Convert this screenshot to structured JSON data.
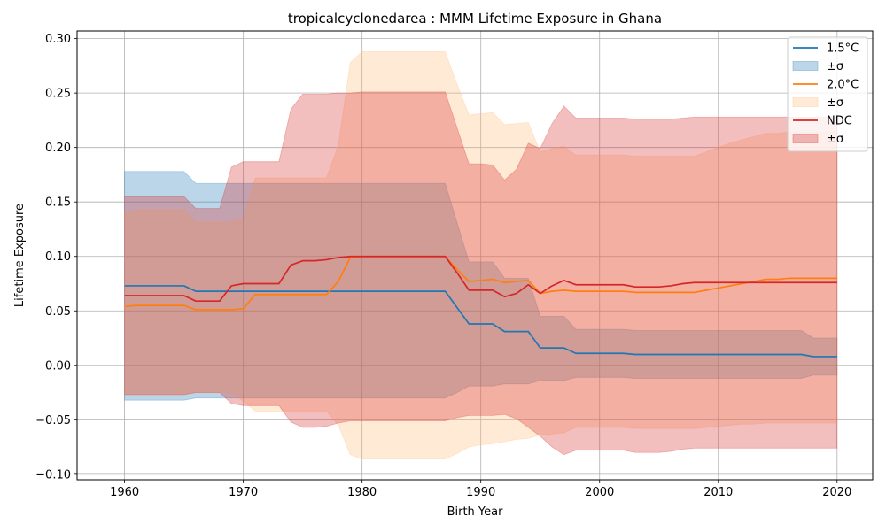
{
  "chart_data": {
    "type": "line",
    "title": "tropicalcyclonedarea : MMM Lifetime Exposure in Ghana",
    "xlabel": "Birth Year",
    "ylabel": "Lifetime Exposure",
    "xlim": [
      1956,
      2023
    ],
    "ylim": [
      -0.105,
      0.307
    ],
    "xticks": [
      1960,
      1970,
      1980,
      1990,
      2000,
      2010,
      2020
    ],
    "xtick_labels": [
      "1960",
      "1970",
      "1980",
      "1990",
      "2000",
      "2010",
      "2020"
    ],
    "yticks": [
      -0.1,
      -0.05,
      0.0,
      0.05,
      0.1,
      0.15,
      0.2,
      0.25,
      0.3
    ],
    "ytick_labels": [
      "−0.10",
      "−0.05",
      "0.00",
      "0.05",
      "0.10",
      "0.15",
      "0.20",
      "0.25",
      "0.30"
    ],
    "grid": true,
    "legend_position": "top-right",
    "x": [
      1960,
      1961,
      1962,
      1963,
      1964,
      1965,
      1966,
      1967,
      1968,
      1969,
      1970,
      1971,
      1972,
      1973,
      1974,
      1975,
      1976,
      1977,
      1978,
      1979,
      1980,
      1981,
      1982,
      1983,
      1984,
      1985,
      1986,
      1987,
      1988,
      1989,
      1990,
      1991,
      1992,
      1993,
      1994,
      1995,
      1996,
      1997,
      1998,
      1999,
      2000,
      2001,
      2002,
      2003,
      2004,
      2005,
      2006,
      2007,
      2008,
      2009,
      2010,
      2011,
      2012,
      2013,
      2014,
      2015,
      2016,
      2017,
      2018,
      2019,
      2020
    ],
    "series": [
      {
        "name": "1.5°C",
        "band_label": "±σ",
        "color": "#1f77b4",
        "fill": "#1f77b4",
        "mean": [
          0.073,
          0.073,
          0.073,
          0.073,
          0.073,
          0.073,
          0.068,
          0.068,
          0.068,
          0.068,
          0.068,
          0.068,
          0.068,
          0.068,
          0.068,
          0.068,
          0.068,
          0.068,
          0.068,
          0.068,
          0.068,
          0.068,
          0.068,
          0.068,
          0.068,
          0.068,
          0.068,
          0.068,
          0.053,
          0.038,
          0.038,
          0.038,
          0.031,
          0.031,
          0.031,
          0.016,
          0.016,
          0.016,
          0.011,
          0.011,
          0.011,
          0.011,
          0.011,
          0.01,
          0.01,
          0.01,
          0.01,
          0.01,
          0.01,
          0.01,
          0.01,
          0.01,
          0.01,
          0.01,
          0.01,
          0.01,
          0.01,
          0.01,
          0.008,
          0.008,
          0.008
        ],
        "upper": [
          0.178,
          0.178,
          0.178,
          0.178,
          0.178,
          0.178,
          0.167,
          0.167,
          0.167,
          0.167,
          0.167,
          0.167,
          0.167,
          0.167,
          0.167,
          0.167,
          0.167,
          0.167,
          0.167,
          0.167,
          0.167,
          0.167,
          0.167,
          0.167,
          0.167,
          0.167,
          0.167,
          0.167,
          0.131,
          0.095,
          0.095,
          0.095,
          0.08,
          0.08,
          0.08,
          0.045,
          0.045,
          0.045,
          0.033,
          0.033,
          0.033,
          0.033,
          0.033,
          0.032,
          0.032,
          0.032,
          0.032,
          0.032,
          0.032,
          0.032,
          0.032,
          0.032,
          0.032,
          0.032,
          0.032,
          0.032,
          0.032,
          0.032,
          0.025,
          0.025,
          0.025
        ],
        "lower": [
          -0.032,
          -0.032,
          -0.032,
          -0.032,
          -0.032,
          -0.032,
          -0.03,
          -0.03,
          -0.03,
          -0.03,
          -0.03,
          -0.03,
          -0.03,
          -0.03,
          -0.03,
          -0.03,
          -0.03,
          -0.03,
          -0.03,
          -0.03,
          -0.03,
          -0.03,
          -0.03,
          -0.03,
          -0.03,
          -0.03,
          -0.03,
          -0.03,
          -0.025,
          -0.019,
          -0.019,
          -0.019,
          -0.017,
          -0.017,
          -0.017,
          -0.014,
          -0.014,
          -0.014,
          -0.011,
          -0.011,
          -0.011,
          -0.011,
          -0.011,
          -0.012,
          -0.012,
          -0.012,
          -0.012,
          -0.012,
          -0.012,
          -0.012,
          -0.012,
          -0.012,
          -0.012,
          -0.012,
          -0.012,
          -0.012,
          -0.012,
          -0.012,
          -0.009,
          -0.009,
          -0.009
        ]
      },
      {
        "name": "2.0°C",
        "band_label": "±σ",
        "color": "#ff7f0e",
        "fill": "#ffbb78",
        "mean": [
          0.054,
          0.055,
          0.055,
          0.055,
          0.055,
          0.055,
          0.051,
          0.051,
          0.051,
          0.051,
          0.052,
          0.065,
          0.065,
          0.065,
          0.065,
          0.065,
          0.065,
          0.065,
          0.077,
          0.099,
          0.1,
          0.1,
          0.1,
          0.1,
          0.1,
          0.1,
          0.1,
          0.1,
          0.088,
          0.077,
          0.078,
          0.079,
          0.076,
          0.077,
          0.078,
          0.066,
          0.068,
          0.069,
          0.068,
          0.068,
          0.068,
          0.068,
          0.068,
          0.067,
          0.067,
          0.067,
          0.067,
          0.067,
          0.067,
          0.069,
          0.071,
          0.073,
          0.075,
          0.077,
          0.079,
          0.079,
          0.08,
          0.08,
          0.08,
          0.08,
          0.08
        ],
        "upper": [
          0.14,
          0.143,
          0.143,
          0.143,
          0.143,
          0.143,
          0.132,
          0.132,
          0.132,
          0.132,
          0.135,
          0.172,
          0.172,
          0.172,
          0.172,
          0.172,
          0.172,
          0.172,
          0.202,
          0.278,
          0.288,
          0.288,
          0.288,
          0.288,
          0.288,
          0.288,
          0.288,
          0.288,
          0.258,
          0.23,
          0.231,
          0.232,
          0.221,
          0.222,
          0.223,
          0.196,
          0.199,
          0.201,
          0.193,
          0.193,
          0.193,
          0.193,
          0.193,
          0.192,
          0.192,
          0.192,
          0.192,
          0.192,
          0.192,
          0.196,
          0.2,
          0.204,
          0.207,
          0.21,
          0.213,
          0.213,
          0.214,
          0.214,
          0.214,
          0.214,
          0.214
        ],
        "lower": [
          -0.027,
          -0.027,
          -0.027,
          -0.027,
          -0.027,
          -0.027,
          -0.025,
          -0.025,
          -0.025,
          -0.025,
          -0.033,
          -0.042,
          -0.042,
          -0.042,
          -0.042,
          -0.042,
          -0.042,
          -0.042,
          -0.055,
          -0.082,
          -0.086,
          -0.086,
          -0.086,
          -0.086,
          -0.086,
          -0.086,
          -0.086,
          -0.086,
          -0.081,
          -0.075,
          -0.073,
          -0.072,
          -0.07,
          -0.068,
          -0.067,
          -0.064,
          -0.063,
          -0.062,
          -0.057,
          -0.057,
          -0.057,
          -0.057,
          -0.057,
          -0.058,
          -0.058,
          -0.058,
          -0.058,
          -0.058,
          -0.058,
          -0.057,
          -0.056,
          -0.055,
          -0.054,
          -0.054,
          -0.053,
          -0.053,
          -0.053,
          -0.053,
          -0.053,
          -0.053,
          -0.053
        ]
      },
      {
        "name": "NDC",
        "band_label": "±σ",
        "color": "#d62728",
        "fill": "#d62728",
        "mean": [
          0.064,
          0.064,
          0.064,
          0.064,
          0.064,
          0.064,
          0.059,
          0.059,
          0.059,
          0.073,
          0.075,
          0.075,
          0.075,
          0.075,
          0.092,
          0.096,
          0.096,
          0.097,
          0.099,
          0.1,
          0.1,
          0.1,
          0.1,
          0.1,
          0.1,
          0.1,
          0.1,
          0.1,
          0.085,
          0.069,
          0.069,
          0.069,
          0.063,
          0.066,
          0.074,
          0.066,
          0.073,
          0.078,
          0.074,
          0.074,
          0.074,
          0.074,
          0.074,
          0.072,
          0.072,
          0.072,
          0.073,
          0.075,
          0.076,
          0.076,
          0.076,
          0.076,
          0.076,
          0.076,
          0.076,
          0.076,
          0.076,
          0.076,
          0.076,
          0.076,
          0.076
        ],
        "upper": [
          0.155,
          0.155,
          0.155,
          0.155,
          0.155,
          0.155,
          0.144,
          0.144,
          0.144,
          0.182,
          0.187,
          0.187,
          0.187,
          0.187,
          0.235,
          0.249,
          0.249,
          0.249,
          0.25,
          0.25,
          0.251,
          0.251,
          0.251,
          0.251,
          0.251,
          0.251,
          0.251,
          0.251,
          0.218,
          0.185,
          0.185,
          0.184,
          0.17,
          0.18,
          0.204,
          0.199,
          0.222,
          0.238,
          0.227,
          0.227,
          0.227,
          0.227,
          0.227,
          0.226,
          0.226,
          0.226,
          0.226,
          0.227,
          0.228,
          0.228,
          0.228,
          0.228,
          0.228,
          0.228,
          0.228,
          0.228,
          0.228,
          0.228,
          0.228,
          0.228,
          0.228
        ],
        "lower": [
          -0.027,
          -0.027,
          -0.027,
          -0.027,
          -0.027,
          -0.027,
          -0.025,
          -0.025,
          -0.025,
          -0.035,
          -0.037,
          -0.037,
          -0.037,
          -0.037,
          -0.052,
          -0.057,
          -0.057,
          -0.056,
          -0.053,
          -0.051,
          -0.051,
          -0.051,
          -0.051,
          -0.051,
          -0.051,
          -0.051,
          -0.051,
          -0.051,
          -0.048,
          -0.046,
          -0.046,
          -0.046,
          -0.045,
          -0.049,
          -0.057,
          -0.065,
          -0.075,
          -0.082,
          -0.078,
          -0.078,
          -0.078,
          -0.078,
          -0.078,
          -0.08,
          -0.08,
          -0.08,
          -0.079,
          -0.077,
          -0.076,
          -0.076,
          -0.076,
          -0.076,
          -0.076,
          -0.076,
          -0.076,
          -0.076,
          -0.076,
          -0.076,
          -0.076,
          -0.076,
          -0.076
        ]
      }
    ]
  }
}
